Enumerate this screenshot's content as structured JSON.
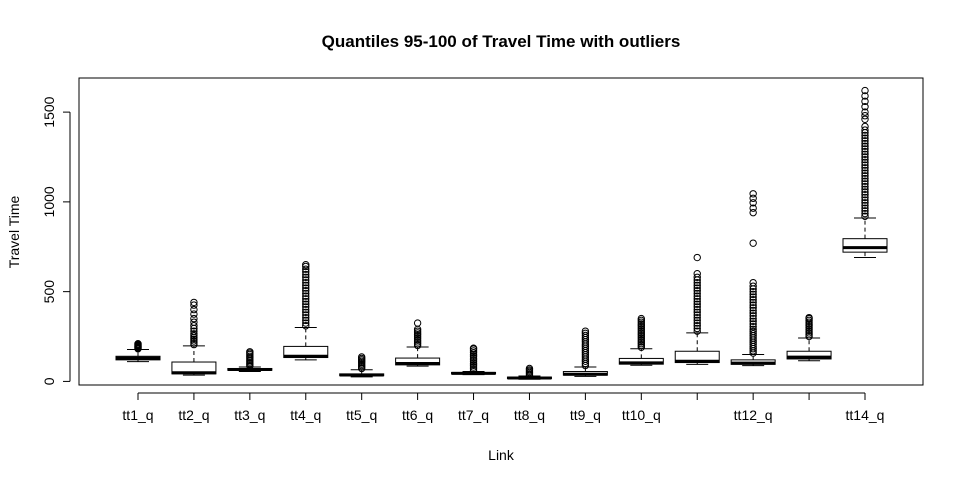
{
  "chart_data": {
    "type": "boxplot",
    "title": "Quantiles 95-100 of Travel Time with outliers",
    "xlabel": "Link",
    "ylabel": "Travel Time",
    "ylim": [
      -20,
      1690
    ],
    "yticks": [
      0,
      500,
      1000,
      1500
    ],
    "grid": false,
    "categories": [
      "tt1_q",
      "tt2_q",
      "tt3_q",
      "tt4_q",
      "tt5_q",
      "tt6_q",
      "tt7_q",
      "tt8_q",
      "tt9_q",
      "tt10_q",
      "",
      "tt12_q",
      "",
      "tt14_q"
    ],
    "boxes": [
      {
        "whisker_low": 110,
        "q1": 120,
        "median": 130,
        "q3": 140,
        "whisker_high": 178,
        "outliers": [
          182,
          186,
          190,
          194,
          198,
          202,
          206,
          210
        ]
      },
      {
        "whisker_low": 35,
        "q1": 42,
        "median": 48,
        "q3": 108,
        "whisker_high": 198,
        "outliers": [
          205,
          215,
          225,
          235,
          245,
          255,
          265,
          280,
          295,
          310,
          330,
          350,
          375,
          400,
          425,
          440
        ]
      },
      {
        "whisker_low": 55,
        "q1": 62,
        "median": 66,
        "q3": 72,
        "whisker_high": 80,
        "outliers": [
          85,
          92,
          100,
          108,
          116,
          124,
          132,
          140,
          150,
          158,
          165
        ]
      },
      {
        "whisker_low": 120,
        "q1": 133,
        "median": 140,
        "q3": 195,
        "whisker_high": 300,
        "outliers": [
          310,
          325,
          340,
          355,
          370,
          385,
          400,
          415,
          430,
          445,
          460,
          475,
          490,
          505,
          520,
          535,
          550,
          565,
          580,
          595,
          610,
          625,
          640,
          650
        ]
      },
      {
        "whisker_low": 25,
        "q1": 32,
        "median": 36,
        "q3": 42,
        "whisker_high": 65,
        "outliers": [
          72,
          80,
          88,
          96,
          104,
          112,
          120,
          128,
          136
        ]
      },
      {
        "whisker_low": 85,
        "q1": 92,
        "median": 100,
        "q3": 130,
        "whisker_high": 192,
        "outliers": [
          200,
          210,
          220,
          230,
          240,
          250,
          260,
          270,
          280,
          290,
          325
        ]
      },
      {
        "whisker_low": 38,
        "q1": 42,
        "median": 45,
        "q3": 50,
        "whisker_high": 55,
        "outliers": [
          60,
          70,
          80,
          90,
          100,
          110,
          120,
          130,
          140,
          150,
          160,
          170,
          180,
          185
        ]
      },
      {
        "whisker_low": 12,
        "q1": 16,
        "median": 19,
        "q3": 24,
        "whisker_high": 30,
        "outliers": [
          35,
          42,
          50,
          57,
          64,
          72
        ]
      },
      {
        "whisker_low": 28,
        "q1": 35,
        "median": 40,
        "q3": 55,
        "whisker_high": 80,
        "outliers": [
          88,
          100,
          112,
          124,
          136,
          148,
          160,
          172,
          184,
          196,
          208,
          220,
          232,
          244,
          256,
          268,
          280
        ]
      },
      {
        "whisker_low": 90,
        "q1": 96,
        "median": 103,
        "q3": 128,
        "whisker_high": 182,
        "outliers": [
          190,
          200,
          210,
          220,
          230,
          240,
          250,
          260,
          270,
          280,
          290,
          300,
          310,
          320,
          330,
          340,
          350
        ]
      },
      {
        "whisker_low": 95,
        "q1": 105,
        "median": 112,
        "q3": 168,
        "whisker_high": 270,
        "outliers": [
          280,
          295,
          310,
          325,
          340,
          355,
          370,
          385,
          400,
          415,
          430,
          445,
          460,
          475,
          490,
          505,
          520,
          535,
          550,
          565,
          580,
          600,
          690
        ]
      },
      {
        "whisker_low": 88,
        "q1": 95,
        "median": 102,
        "q3": 120,
        "whisker_high": 150,
        "outliers": [
          158,
          170,
          182,
          194,
          206,
          218,
          230,
          242,
          254,
          266,
          278,
          290,
          305,
          320,
          335,
          350,
          365,
          380,
          395,
          410,
          425,
          440,
          455,
          470,
          485,
          500,
          515,
          530,
          550,
          770,
          940,
          965,
          995,
          1020,
          1045
        ]
      },
      {
        "whisker_low": 115,
        "q1": 125,
        "median": 135,
        "q3": 168,
        "whisker_high": 242,
        "outliers": [
          250,
          260,
          270,
          280,
          290,
          300,
          310,
          320,
          330,
          340,
          350,
          355
        ]
      },
      {
        "whisker_low": 690,
        "q1": 720,
        "median": 745,
        "q3": 795,
        "whisker_high": 910,
        "outliers": [
          920,
          935,
          950,
          965,
          980,
          995,
          1010,
          1025,
          1040,
          1055,
          1070,
          1085,
          1100,
          1115,
          1130,
          1145,
          1160,
          1175,
          1190,
          1205,
          1220,
          1235,
          1250,
          1265,
          1280,
          1295,
          1310,
          1325,
          1340,
          1355,
          1370,
          1385,
          1400,
          1420,
          1460,
          1480,
          1500,
          1530,
          1560,
          1590,
          1620
        ]
      }
    ]
  }
}
